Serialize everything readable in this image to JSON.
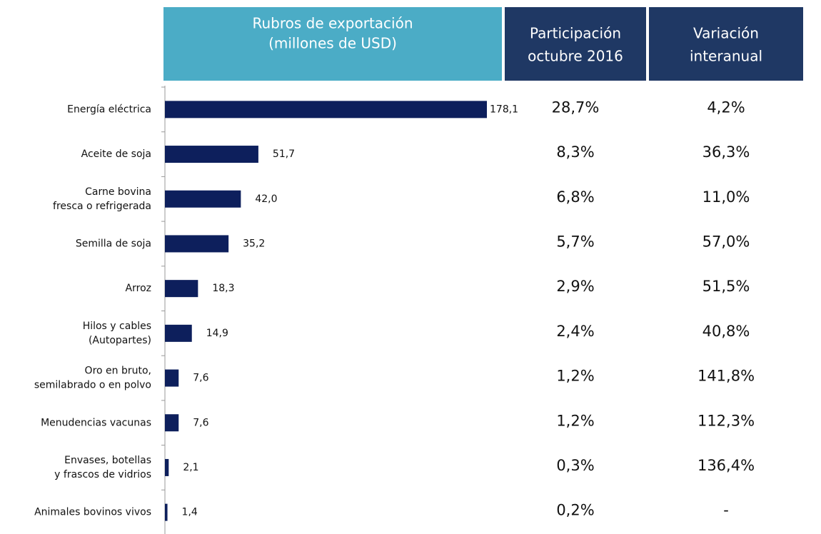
{
  "chart_data": {
    "type": "bar",
    "orientation": "horizontal",
    "headers": [
      [
        "Rubros de exportación",
        "(millones de USD)"
      ],
      [
        "Participación",
        "octubre 2016"
      ],
      [
        "Variación",
        "interanual"
      ]
    ],
    "categories": [
      [
        "Energía eléctrica"
      ],
      [
        "Aceite de soja"
      ],
      [
        "Carne bovina",
        "fresca o refrigerada"
      ],
      [
        "Semilla de soja"
      ],
      [
        "Arroz"
      ],
      [
        "Hilos y cables",
        "(Autopartes)"
      ],
      [
        "Oro en bruto,",
        "semilabrado o en polvo"
      ],
      [
        "Menudencias vacunas"
      ],
      [
        "Envases, botellas",
        "y frascos de vidrios"
      ],
      [
        "Animales bovinos vivos"
      ]
    ],
    "values": [
      178.1,
      51.7,
      42.0,
      35.2,
      18.3,
      14.9,
      7.6,
      7.6,
      2.1,
      1.4
    ],
    "value_labels": [
      "178,1",
      "51,7",
      "42,0",
      "35,2",
      "18,3",
      "14,9",
      "7,6",
      "7,6",
      "2,1",
      "1,4"
    ],
    "color": "#0d1f5c",
    "columns": [
      [
        "28,7%",
        "8,3%",
        "6,8%",
        "5,7%",
        "2,9%",
        "2,4%",
        "1,2%",
        "1,2%",
        "0,3%",
        "0,2%"
      ],
      [
        "4,2%",
        "36,3%",
        "11,0%",
        "57,0%",
        "51,5%",
        "40,8%",
        "141,8%",
        "112,3%",
        "136,4%",
        "-"
      ]
    ]
  }
}
